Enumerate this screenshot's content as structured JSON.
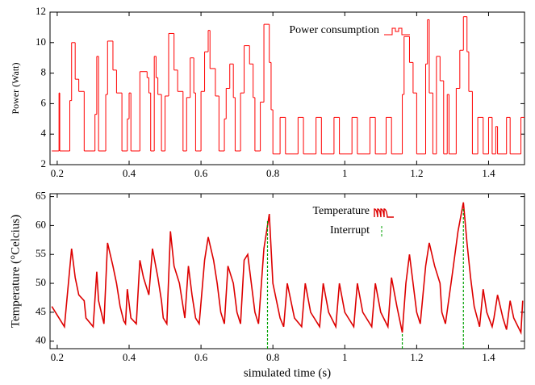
{
  "chart_data": [
    {
      "type": "line",
      "ylabel": "Power (Watt)",
      "xlim": [
        0.18,
        1.5
      ],
      "xticks": [
        0.2,
        0.4,
        0.6,
        0.8,
        1,
        1.2,
        1.4
      ],
      "ylim": [
        2,
        12
      ],
      "yticks": [
        2,
        4,
        6,
        8,
        10,
        12
      ],
      "series": [
        {
          "name": "Power consumption",
          "color": "#ff0000",
          "step": "post",
          "x": [
            0.185,
            0.205,
            0.207,
            0.235,
            0.24,
            0.25,
            0.26,
            0.275,
            0.305,
            0.31,
            0.315,
            0.335,
            0.34,
            0.355,
            0.365,
            0.38,
            0.395,
            0.4,
            0.405,
            0.43,
            0.45,
            0.455,
            0.46,
            0.47,
            0.475,
            0.48,
            0.49,
            0.5,
            0.51,
            0.525,
            0.535,
            0.55,
            0.56,
            0.57,
            0.58,
            0.585,
            0.6,
            0.61,
            0.62,
            0.625,
            0.64,
            0.65,
            0.665,
            0.67,
            0.68,
            0.69,
            0.695,
            0.71,
            0.72,
            0.735,
            0.745,
            0.75,
            0.765,
            0.775,
            0.79,
            0.795,
            0.8,
            0.82,
            0.835,
            0.87,
            0.885,
            0.92,
            0.935,
            0.97,
            0.985,
            1.02,
            1.035,
            1.07,
            1.085,
            1.115,
            1.13,
            1.16,
            1.165,
            1.18,
            1.19,
            1.2,
            1.225,
            1.23,
            1.235,
            1.245,
            1.255,
            1.265,
            1.275,
            1.285,
            1.29,
            1.31,
            1.32,
            1.33,
            1.34,
            1.345,
            1.355,
            1.37,
            1.385,
            1.4,
            1.41,
            1.42,
            1.425,
            1.45,
            1.46,
            1.49,
            1.5
          ],
          "values": [
            2.9,
            6.7,
            2.9,
            6.2,
            10,
            7.6,
            6.8,
            2.9,
            5.3,
            9.1,
            2.9,
            6.6,
            10.1,
            8.2,
            6.7,
            2.9,
            5,
            6.7,
            2.9,
            8.1,
            7.7,
            6.7,
            2.9,
            9.1,
            7.7,
            6.6,
            2.9,
            6.5,
            10.6,
            8.2,
            6.8,
            2.9,
            6.4,
            9,
            6.7,
            2.9,
            6.8,
            9.4,
            10.8,
            8.3,
            6.5,
            2.9,
            5,
            7,
            8.6,
            6.4,
            2.9,
            6.7,
            9.8,
            8.6,
            6.4,
            2.9,
            6.1,
            11.2,
            8.7,
            5.6,
            2.7,
            5.1,
            2.7,
            5.1,
            2.7,
            5.1,
            2.7,
            5.1,
            2.7,
            5.1,
            2.7,
            5.1,
            2.7,
            5.1,
            2.7,
            6.6,
            10.4,
            8.7,
            6.7,
            2.7,
            8.6,
            11.5,
            6.7,
            2.7,
            9.1,
            7.5,
            2.7,
            6.6,
            2.7,
            7,
            9.5,
            11.7,
            9.4,
            6.8,
            2.7,
            5.1,
            2.7,
            5.1,
            2.7,
            4.5,
            2.7,
            5.1,
            2.7,
            5.1,
            5.1
          ]
        }
      ]
    },
    {
      "type": "line",
      "xlabel": "simulated time (s)",
      "ylabel": "Temperature (°Celcius)",
      "xlim": [
        0.18,
        1.5
      ],
      "xticks": [
        0.2,
        0.4,
        0.6,
        0.8,
        1,
        1.2,
        1.4
      ],
      "ylim": [
        38.7,
        65.5
      ],
      "yticks": [
        40,
        45,
        50,
        55,
        60,
        65
      ],
      "series": [
        {
          "name": "Temperature",
          "color": "#dd0000",
          "x": [
            0.185,
            0.2,
            0.22,
            0.24,
            0.25,
            0.26,
            0.275,
            0.28,
            0.3,
            0.31,
            0.315,
            0.33,
            0.34,
            0.355,
            0.365,
            0.375,
            0.385,
            0.39,
            0.395,
            0.405,
            0.42,
            0.43,
            0.44,
            0.455,
            0.465,
            0.48,
            0.49,
            0.495,
            0.505,
            0.515,
            0.525,
            0.54,
            0.55,
            0.555,
            0.565,
            0.575,
            0.585,
            0.595,
            0.61,
            0.62,
            0.635,
            0.645,
            0.655,
            0.665,
            0.675,
            0.69,
            0.7,
            0.71,
            0.72,
            0.73,
            0.74,
            0.75,
            0.76,
            0.775,
            0.79,
            0.795,
            0.8,
            0.81,
            0.82,
            0.83,
            0.84,
            0.86,
            0.88,
            0.89,
            0.905,
            0.93,
            0.94,
            0.955,
            0.975,
            0.985,
            1.0,
            1.025,
            1.035,
            1.05,
            1.075,
            1.085,
            1.1,
            1.12,
            1.13,
            1.145,
            1.16,
            1.17,
            1.18,
            1.19,
            1.2,
            1.21,
            1.225,
            1.235,
            1.25,
            1.265,
            1.27,
            1.28,
            1.3,
            1.315,
            1.33,
            1.34,
            1.35,
            1.36,
            1.375,
            1.385,
            1.395,
            1.41,
            1.415,
            1.425,
            1.44,
            1.45,
            1.46,
            1.47,
            1.49,
            1.495
          ],
          "values": [
            46,
            44.5,
            42.5,
            56,
            51,
            48,
            47,
            44,
            42.5,
            52,
            47,
            43,
            57,
            53,
            50,
            46,
            43.5,
            43,
            49,
            44,
            43,
            54,
            51,
            48,
            56,
            51,
            47,
            44,
            43,
            59,
            53,
            50,
            46,
            44,
            53,
            48,
            44,
            43,
            54,
            58,
            54,
            50,
            45,
            43,
            53,
            50,
            45,
            43,
            54,
            55,
            50,
            45,
            43,
            56,
            62,
            56,
            50,
            47,
            44,
            42.5,
            50,
            44,
            42.5,
            50,
            45,
            42.5,
            50,
            45,
            42.5,
            50,
            45,
            42.5,
            50,
            45,
            42.5,
            50,
            45,
            42.5,
            51,
            46,
            41.5,
            50,
            55,
            50,
            45,
            43,
            53,
            57,
            53,
            50,
            45,
            43,
            52,
            59,
            64,
            57,
            51,
            46,
            42.5,
            49,
            45,
            42.5,
            44,
            48,
            44,
            42,
            47,
            44,
            41.5,
            47
          ]
        },
        {
          "name": "Interrupt",
          "color": "#00a000",
          "type": "impulse",
          "x": [
            0.785,
            1.16,
            1.33
          ],
          "values": [
            61,
            41.5,
            63
          ]
        }
      ]
    }
  ]
}
